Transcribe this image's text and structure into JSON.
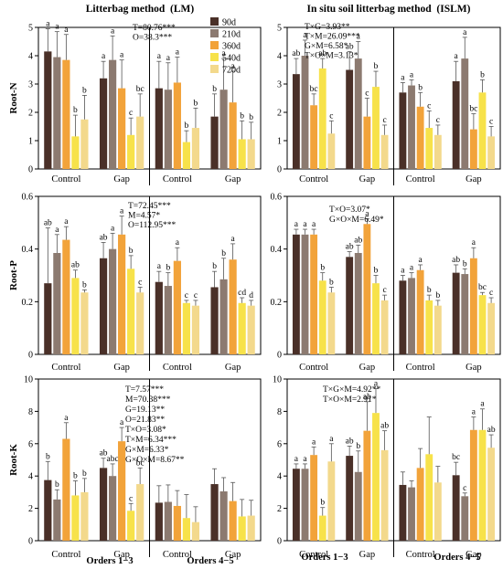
{
  "chart_data": {
    "type": "bar",
    "column_titles": [
      "Litterbag method  (LM)",
      "In situ soil litterbag method  (ISLM)"
    ],
    "row_labels": [
      "Root-N",
      "Root-P",
      "Root-K"
    ],
    "legend": [
      {
        "name": "90d",
        "color": "#4a3028"
      },
      {
        "name": "210d",
        "color": "#8c7a70"
      },
      {
        "name": "360d",
        "color": "#f2a33a"
      },
      {
        "name": "540d",
        "color": "#f7e24a"
      },
      {
        "name": "720d",
        "color": "#f3d98c"
      }
    ],
    "legend_placement": "top-right of first panel",
    "groups": [
      "Control",
      "Gap",
      "Control",
      "Gap"
    ],
    "group_labels": [
      "Orders 1−3",
      "Orders 4−5"
    ],
    "panels": [
      {
        "id": "lm-n",
        "row": 0,
        "col": 0,
        "ylim": [
          0,
          5
        ],
        "yticks": [
          0,
          1,
          2,
          3,
          4,
          5
        ],
        "stats": [
          "T=80.76***",
          "O=38.3***"
        ],
        "values": [
          [
            4.15,
            3.95,
            3.85,
            1.15,
            1.75
          ],
          [
            3.2,
            3.85,
            2.85,
            1.2,
            1.85
          ],
          [
            2.85,
            2.8,
            3.05,
            0.95,
            1.45
          ],
          [
            1.85,
            2.8,
            2.35,
            1.05,
            1.05
          ]
        ],
        "errors": [
          [
            0.8,
            0.9,
            0.9,
            0.75,
            0.85
          ],
          [
            0.6,
            0.85,
            1.0,
            0.6,
            0.8
          ],
          [
            0.95,
            0.95,
            0.9,
            0.4,
            0.7
          ],
          [
            0.8,
            1.1,
            1.1,
            0.65,
            0.6
          ]
        ],
        "letters": [
          [
            "a",
            "a",
            "a",
            "b",
            "b"
          ],
          [
            "a",
            "a",
            "a",
            "c",
            "bc"
          ],
          [
            "a",
            "a",
            "a",
            "b",
            "b"
          ],
          [
            "b",
            "a",
            "a",
            "b",
            "b"
          ]
        ]
      },
      {
        "id": "islm-n",
        "row": 0,
        "col": 1,
        "ylim": [
          0,
          5
        ],
        "yticks": [
          0,
          1,
          2,
          3,
          4,
          5
        ],
        "stats": [
          "T×G=3.93**",
          "T×M=26.09***",
          "G×M=6.58*",
          "T×O×M=3.13*"
        ],
        "values": [
          [
            3.35,
            4.0,
            2.25,
            3.55,
            1.25
          ],
          [
            3.5,
            3.9,
            1.85,
            2.9,
            1.2
          ],
          [
            2.7,
            2.95,
            2.2,
            1.45,
            1.2
          ],
          [
            3.1,
            3.9,
            1.4,
            2.7,
            1.15
          ]
        ],
        "errors": [
          [
            0.55,
            0.55,
            0.4,
            0.35,
            0.45
          ],
          [
            0.65,
            0.6,
            0.65,
            0.55,
            0.35
          ],
          [
            0.35,
            0.2,
            0.5,
            0.6,
            0.35
          ],
          [
            0.7,
            0.75,
            0.55,
            0.45,
            0.35
          ]
        ],
        "letters": [
          [
            "ab",
            "a",
            "bc",
            "ab",
            "c"
          ],
          [
            "ab",
            "a",
            "c",
            "b",
            "c"
          ],
          [
            "a",
            "a",
            "b",
            "c",
            "c"
          ],
          [
            "a",
            "a",
            "bc",
            "b",
            "c"
          ]
        ]
      },
      {
        "id": "lm-p",
        "row": 1,
        "col": 0,
        "ylim": [
          0,
          0.6
        ],
        "yticks": [
          0,
          0.2,
          0.4,
          0.6
        ],
        "stats": [
          "T=72.45***",
          "M=4.57*",
          "O=112.95***"
        ],
        "values": [
          [
            0.27,
            0.385,
            0.435,
            0.29,
            0.235
          ],
          [
            0.365,
            0.4,
            0.455,
            0.325,
            0.235
          ],
          [
            0.275,
            0.26,
            0.355,
            0.195,
            0.185
          ],
          [
            0.255,
            0.285,
            0.36,
            0.195,
            0.185
          ]
        ],
        "errors": [
          [
            0.21,
            0.07,
            0.05,
            0.03,
            0.01
          ],
          [
            0.06,
            0.06,
            0.07,
            0.05,
            0.02
          ],
          [
            0.04,
            0.05,
            0.05,
            0.01,
            0.02
          ],
          [
            0.06,
            0.08,
            0.06,
            0.02,
            0.02
          ]
        ],
        "letters": [
          [
            "ab",
            "a",
            "a",
            "ab",
            "b"
          ],
          [
            "ab",
            "a",
            "a",
            "b",
            "c"
          ],
          [
            "a",
            "b",
            "a",
            "c",
            "c"
          ],
          [
            "b",
            "b",
            "a",
            "cd",
            "d"
          ]
        ]
      },
      {
        "id": "islm-p",
        "row": 1,
        "col": 1,
        "ylim": [
          0,
          0.6
        ],
        "yticks": [
          0,
          0.2,
          0.4,
          0.6
        ],
        "stats": [
          "T×O=3.07*",
          "G×O×M=6.49*"
        ],
        "values": [
          [
            0.455,
            0.455,
            0.455,
            0.28,
            0.235
          ],
          [
            0.37,
            0.385,
            0.495,
            0.27,
            0.205
          ],
          [
            0.28,
            0.29,
            0.32,
            0.205,
            0.185
          ],
          [
            0.31,
            0.305,
            0.365,
            0.225,
            0.195
          ]
        ],
        "errors": [
          [
            0.02,
            0.02,
            0.02,
            0.03,
            0.02
          ],
          [
            0.02,
            0.03,
            0.02,
            0.03,
            0.02
          ],
          [
            0.02,
            0.02,
            0.02,
            0.02,
            0.02
          ],
          [
            0.03,
            0.02,
            0.04,
            0.01,
            0.02
          ]
        ],
        "letters": [
          [
            "a",
            "a",
            "a",
            "b",
            "b"
          ],
          [
            "ab",
            "ab",
            "a",
            "b",
            "c"
          ],
          [
            "a",
            "a",
            "a",
            "b",
            "b"
          ],
          [
            "ab",
            "b",
            "a",
            "bc",
            "c"
          ]
        ]
      },
      {
        "id": "lm-k",
        "row": 2,
        "col": 0,
        "ylim": [
          0,
          10
        ],
        "yticks": [
          0,
          2,
          4,
          6,
          8,
          10
        ],
        "stats": [
          "T=7.57***",
          "M=70.38***",
          "G=19.13**",
          "O=21.83**",
          "T×O=3.08*",
          "T×M=6.34***",
          "G×M=6.33*",
          "G×O×M=8.67**"
        ],
        "values": [
          [
            3.75,
            2.55,
            6.3,
            2.8,
            3.0
          ],
          [
            4.5,
            4.0,
            6.15,
            1.85,
            3.5
          ],
          [
            2.35,
            2.4,
            2.15,
            1.4,
            1.15
          ],
          [
            3.5,
            3.05,
            2.45,
            1.5,
            1.55
          ]
        ],
        "errors": [
          [
            1.15,
            0.6,
            1.0,
            0.9,
            0.85
          ],
          [
            0.6,
            0.75,
            0.85,
            0.45,
            1.0
          ],
          [
            1.05,
            1.05,
            0.95,
            1.45,
            0.95
          ],
          [
            0.95,
            0.85,
            1.15,
            1.05,
            0.95
          ]
        ],
        "letters": [
          [
            "b",
            "b",
            "a",
            "b",
            "b"
          ],
          [
            "ab",
            "abc",
            "a",
            "c",
            "bc"
          ],
          [
            "",
            "",
            "",
            "",
            ""
          ],
          [
            "",
            "",
            "",
            "",
            ""
          ]
        ]
      },
      {
        "id": "islm-k",
        "row": 2,
        "col": 1,
        "ylim": [
          0,
          10
        ],
        "yticks": [
          0,
          2,
          4,
          6,
          8,
          10
        ],
        "stats": [
          "T×G×M=4.92**",
          "T×O×M=2.91*"
        ],
        "values": [
          [
            4.45,
            4.45,
            5.3,
            1.55,
            4.9
          ],
          [
            5.25,
            4.25,
            6.8,
            7.9,
            5.6
          ],
          [
            3.45,
            3.3,
            4.5,
            5.35,
            3.6
          ],
          [
            4.05,
            2.75,
            6.85,
            6.85,
            5.75
          ]
        ],
        "errors": [
          [
            0.3,
            0.3,
            0.5,
            0.5,
            1.1
          ],
          [
            0.6,
            1.3,
            1.8,
            1.5,
            1.2
          ],
          [
            0.8,
            0.4,
            1.2,
            2.3,
            1.0
          ],
          [
            0.8,
            0.2,
            0.8,
            1.3,
            0.8
          ]
        ],
        "letters": [
          [
            "a",
            "a",
            "a",
            "b",
            "a"
          ],
          [
            "ab",
            "b",
            "ab",
            "a",
            "ab"
          ],
          [
            "",
            "",
            "",
            "",
            ""
          ],
          [
            "bc",
            "c",
            "a",
            "a",
            "ab"
          ]
        ]
      }
    ]
  }
}
